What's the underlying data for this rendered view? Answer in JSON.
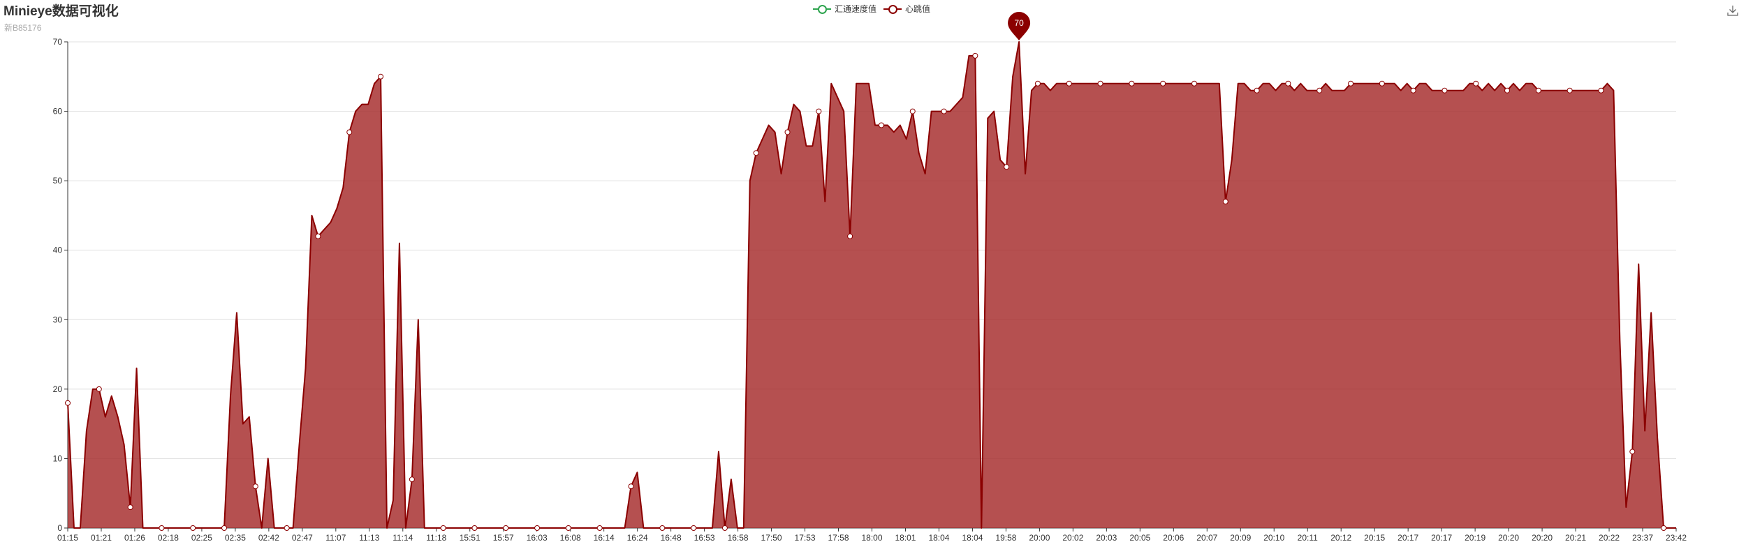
{
  "header": {
    "title": "Minieye数据可视化",
    "subtitle": "新B85176"
  },
  "toolbox": {
    "download_icon": "download-icon"
  },
  "colors": {
    "series_1": "#2ea44f",
    "series_2": "#8b0000",
    "area_fill": "#a52a2a",
    "grid": "#e0e0e0",
    "axis": "#333333"
  },
  "chart_data": {
    "type": "area",
    "legend_position": "top-center",
    "grid": true,
    "ylim": [
      0,
      70
    ],
    "yticks": [
      0,
      10,
      20,
      30,
      40,
      50,
      60,
      70
    ],
    "x_tick_labels": [
      "01:15",
      "01:21",
      "01:26",
      "02:18",
      "02:25",
      "02:35",
      "02:42",
      "02:47",
      "11:07",
      "11:13",
      "11:14",
      "11:18",
      "15:51",
      "15:57",
      "16:03",
      "16:08",
      "16:14",
      "16:24",
      "16:48",
      "16:53",
      "16:58",
      "17:50",
      "17:53",
      "17:58",
      "18:00",
      "18:01",
      "18:04",
      "18:04",
      "19:58",
      "20:00",
      "20:02",
      "20:03",
      "20:05",
      "20:06",
      "20:07",
      "20:09",
      "20:10",
      "20:11",
      "20:12",
      "20:15",
      "20:17",
      "20:17",
      "20:19",
      "20:20",
      "20:20",
      "20:21",
      "20:22",
      "23:37",
      "23:42"
    ],
    "series": [
      {
        "name": "汇通速度值",
        "values": []
      },
      {
        "name": "心跳值",
        "values": [
          18,
          0,
          0,
          14,
          20,
          20,
          16,
          19,
          16,
          12,
          3,
          23,
          0,
          0,
          0,
          0,
          0,
          0,
          0,
          0,
          0,
          0,
          0,
          0,
          0,
          0,
          19,
          31,
          15,
          16,
          6,
          0,
          10,
          0,
          0,
          0,
          0,
          12,
          23,
          45,
          42,
          43,
          44,
          46,
          49,
          57,
          60,
          61,
          61,
          64,
          65,
          0,
          4,
          41,
          0,
          7,
          30,
          0,
          0,
          0,
          0,
          0,
          0,
          0,
          0,
          0,
          0,
          0,
          0,
          0,
          0,
          0,
          0,
          0,
          0,
          0,
          0,
          0,
          0,
          0,
          0,
          0,
          0,
          0,
          0,
          0,
          0,
          0,
          0,
          0,
          6,
          8,
          0,
          0,
          0,
          0,
          0,
          0,
          0,
          0,
          0,
          0,
          0,
          0,
          11,
          0,
          7,
          0,
          0,
          50,
          54,
          56,
          58,
          57,
          51,
          57,
          61,
          60,
          55,
          55,
          60,
          47,
          64,
          62,
          60,
          42,
          64,
          64,
          64,
          58,
          58,
          58,
          57,
          58,
          56,
          60,
          54,
          51,
          60,
          60,
          60,
          60,
          61,
          62,
          68,
          68,
          0,
          59,
          60,
          53,
          52,
          65,
          70,
          51,
          63,
          64,
          64,
          63,
          64,
          64,
          64,
          64,
          64,
          64,
          64,
          64,
          64,
          64,
          64,
          64,
          64,
          64,
          64,
          64,
          64,
          64,
          64,
          64,
          64,
          64,
          64,
          64,
          64,
          64,
          64,
          47,
          53,
          64,
          64,
          63,
          63,
          64,
          64,
          63,
          64,
          64,
          63,
          64,
          63,
          63,
          63,
          64,
          63,
          63,
          63,
          64,
          64,
          64,
          64,
          64,
          64,
          64,
          64,
          63,
          64,
          63,
          64,
          64,
          63,
          63,
          63,
          63,
          63,
          63,
          64,
          64,
          63,
          64,
          63,
          64,
          63,
          64,
          63,
          64,
          64,
          63,
          63,
          63,
          63,
          63,
          63,
          63,
          63,
          63,
          63,
          63,
          64,
          63,
          27,
          3,
          11,
          38,
          14,
          31,
          13,
          0,
          0,
          0
        ]
      }
    ],
    "marker": {
      "label": "70"
    }
  }
}
